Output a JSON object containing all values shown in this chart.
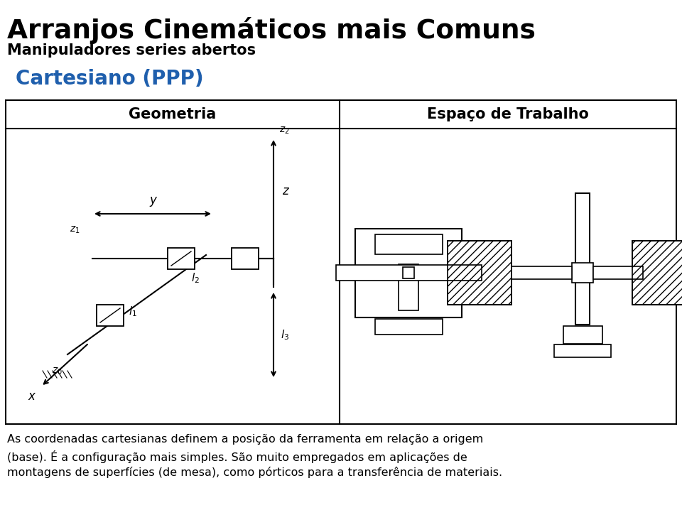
{
  "title": "Arranjos Cinemáticos mais Comuns",
  "subtitle": "Manipuladores series abertos",
  "cartesiano_label": "Cartesiano (PPP)",
  "geometria_label": "Geometria",
  "espaco_label": "Espaço de Trabalho",
  "line1": "As coordenadas cartesianas definem a posição da ferramenta em relação a origem",
  "line2": "(base). É a configuração mais simples. São muito empregados em aplicações de",
  "line3": "montagens de superfícies (de mesa), como pórticos para a transferência de materiais.",
  "bg_color": "#ffffff",
  "title_color": "#000000",
  "cartesiano_color": "#1F5FAD",
  "table_border_color": "#000000"
}
